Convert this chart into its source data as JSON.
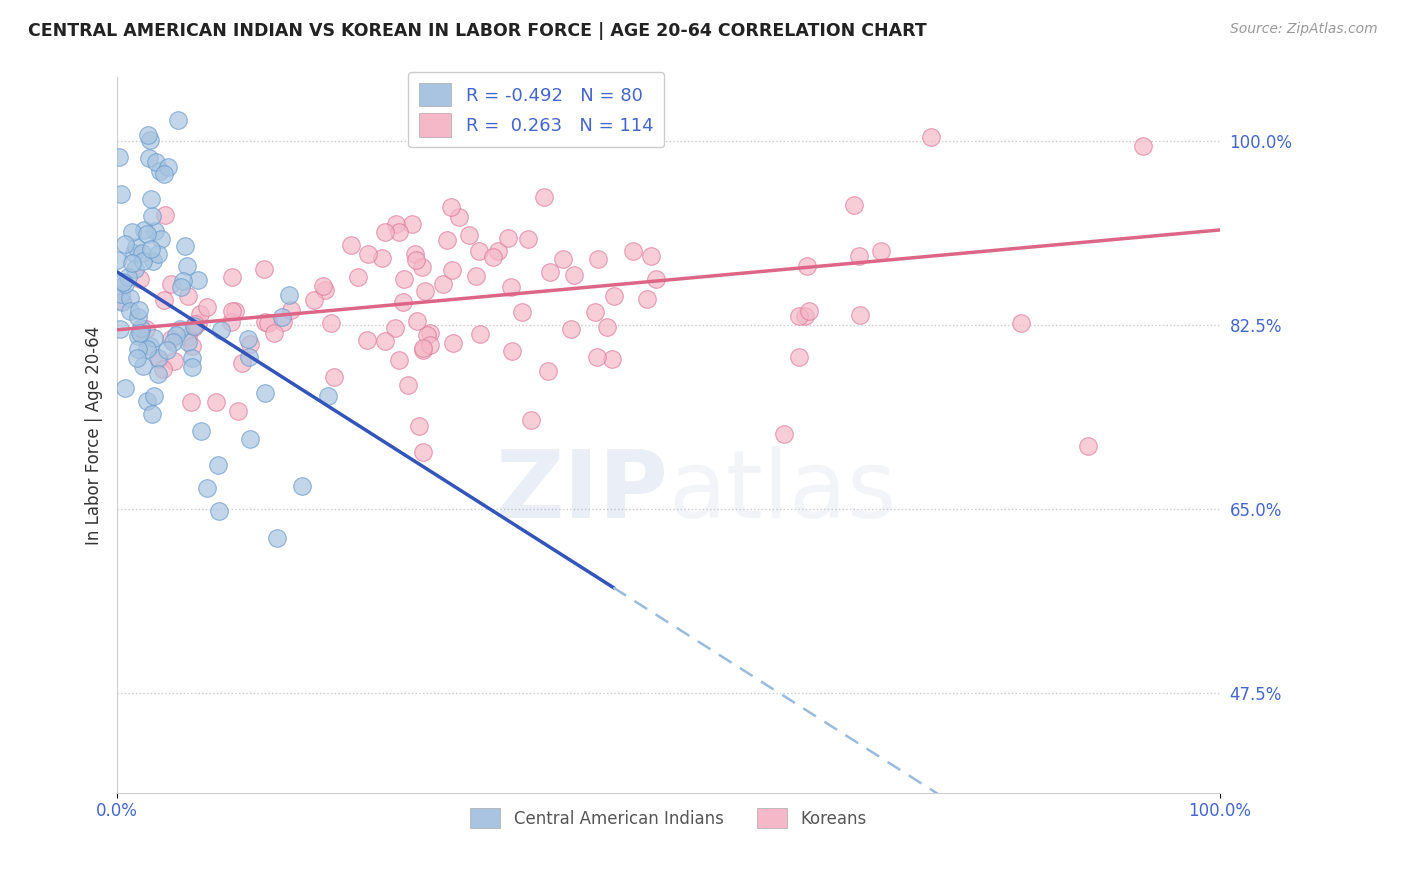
{
  "title": "CENTRAL AMERICAN INDIAN VS KOREAN IN LABOR FORCE | AGE 20-64 CORRELATION CHART",
  "source": "Source: ZipAtlas.com",
  "ylabel": "In Labor Force | Age 20-64",
  "xlim": [
    0,
    1
  ],
  "ylim": [
    0.38,
    1.06
  ],
  "yticks": [
    0.475,
    0.65,
    0.825,
    1.0
  ],
  "ytick_labels": [
    "47.5%",
    "65.0%",
    "82.5%",
    "100.0%"
  ],
  "xtick_labels": [
    "0.0%",
    "100.0%"
  ],
  "blue_R": -0.492,
  "blue_N": 80,
  "pink_R": 0.263,
  "pink_N": 114,
  "blue_color": "#a8c4e0",
  "blue_edge": "#6699cc",
  "pink_color": "#f4b8c8",
  "pink_edge": "#dd7799",
  "blue_line_color": "#3355bb",
  "pink_line_color": "#dd6688",
  "dashed_color": "#99bbdd",
  "grid_color": "#cccccc",
  "background_color": "#ffffff",
  "watermark_zip_color": "#5577bb",
  "watermark_atlas_color": "#aabbcc",
  "blue_line_x0": 0.0,
  "blue_line_y0": 0.875,
  "blue_line_x1": 0.45,
  "blue_line_y1": 0.575,
  "blue_line_xend": 1.0,
  "blue_line_yend": 0.24,
  "pink_line_x0": 0.0,
  "pink_line_y0": 0.82,
  "pink_line_x1": 1.0,
  "pink_line_y1": 0.915
}
